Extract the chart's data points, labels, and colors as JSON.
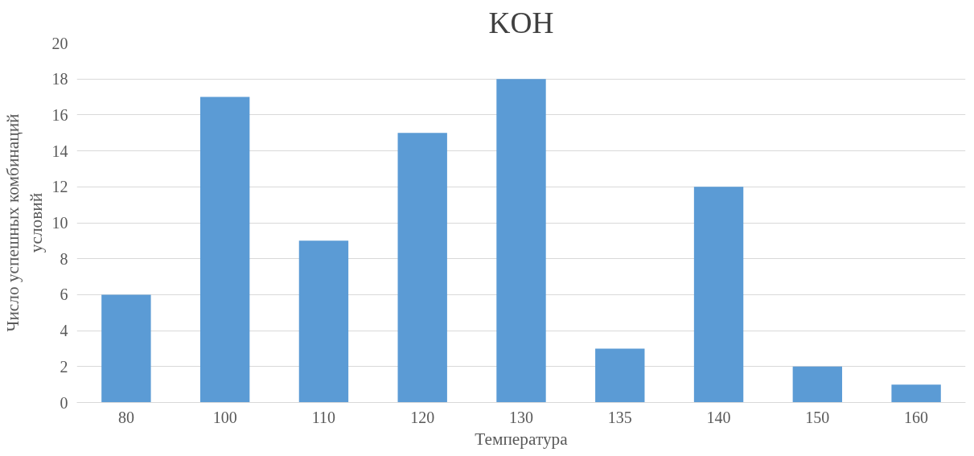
{
  "chart_data": {
    "type": "bar",
    "title": "KOH",
    "xlabel": "Температура",
    "ylabel": "Число успешных комбинаций условий",
    "categories": [
      "80",
      "100",
      "110",
      "120",
      "130",
      "135",
      "140",
      "150",
      "160"
    ],
    "values": [
      6,
      17,
      9,
      15,
      18,
      3,
      12,
      2,
      1
    ],
    "color": "#5b9bd5",
    "ylim": [
      0,
      20
    ],
    "yticks": [
      0,
      2,
      4,
      6,
      8,
      10,
      12,
      14,
      16,
      18,
      20
    ],
    "grid": "y"
  }
}
